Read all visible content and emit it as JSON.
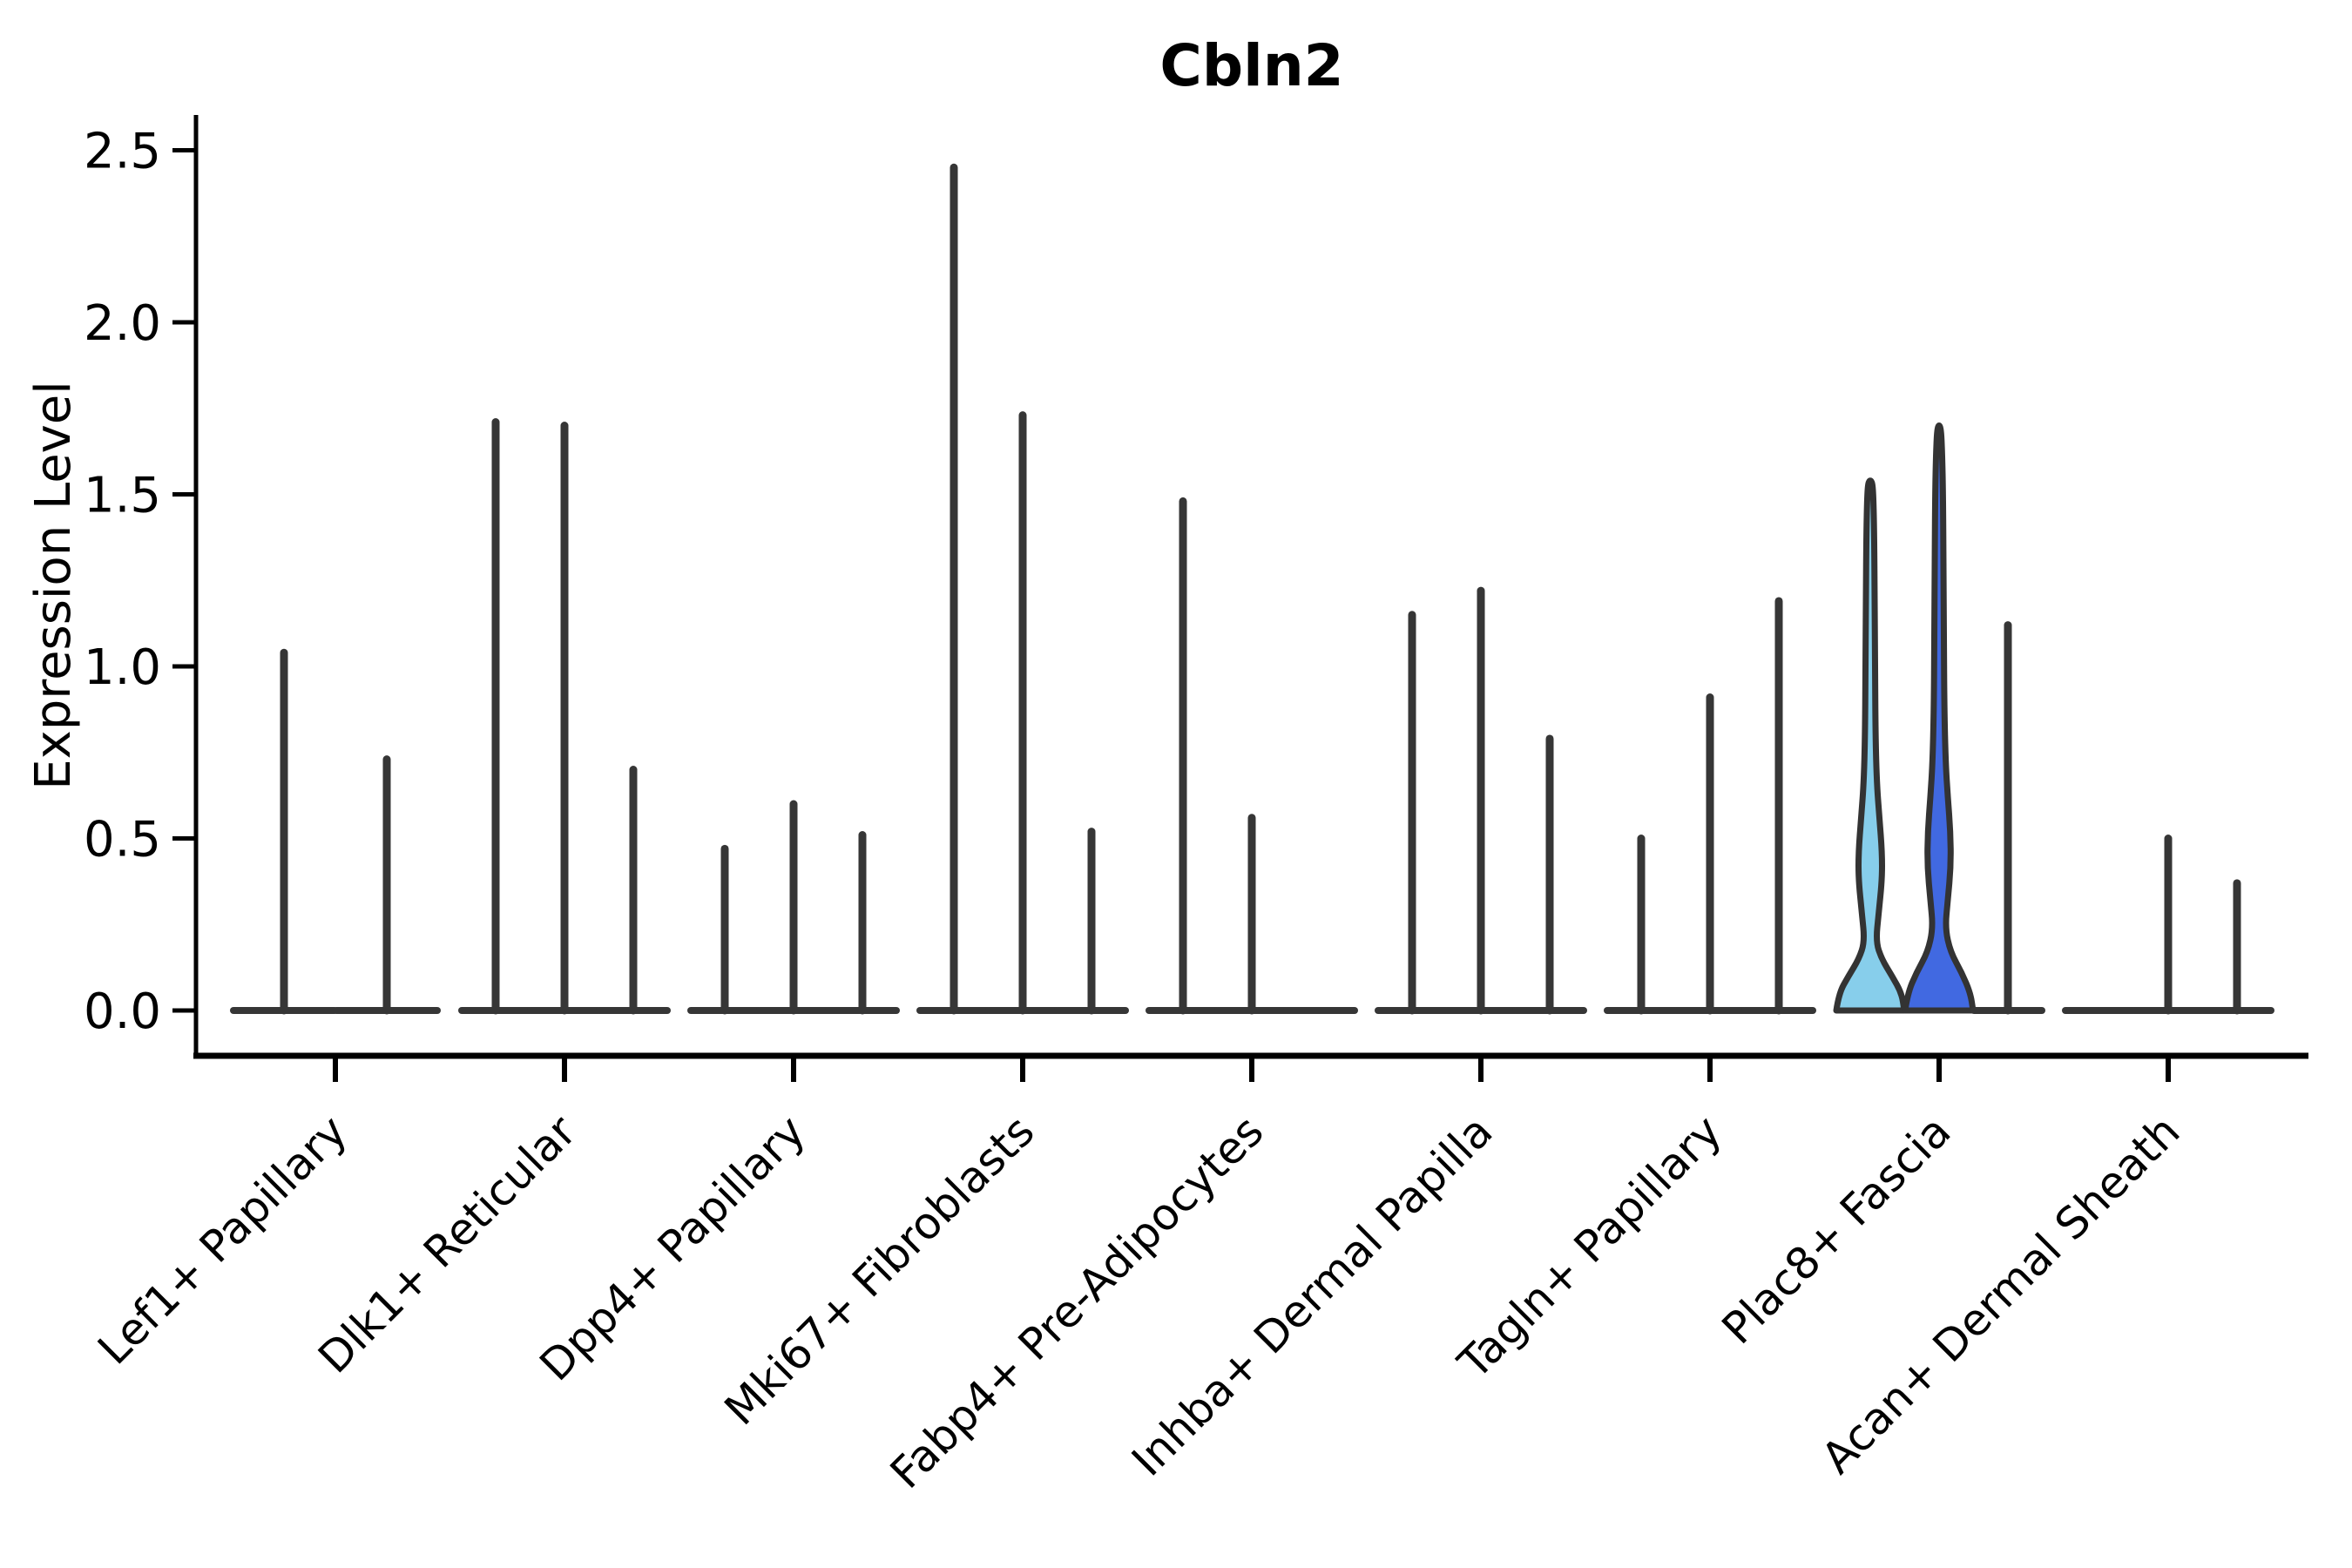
{
  "chart_data": {
    "type": "violin",
    "title": "Cbln2",
    "xlabel": "",
    "ylabel": "Expression Level",
    "ylim": [
      0,
      2.5
    ],
    "ytick_labels": [
      "0.0",
      "0.5",
      "1.0",
      "1.5",
      "2.0",
      "2.5"
    ],
    "ytick_values": [
      0,
      0.5,
      1.0,
      1.5,
      2.0,
      2.5
    ],
    "grid": false,
    "legend": "none",
    "colors": {
      "spike": "#363636",
      "outline": "#333333",
      "axis": "#000000",
      "text": "#000000",
      "fill_light_blue": "#87CEEB",
      "fill_royal_blue": "#4169E1"
    },
    "categories": [
      "Lef1+ Papillary",
      "Dlk1+ Reticular",
      "Dpp4+ Papillary",
      "Mki67+ Fibroblasts",
      "Fabp4+ Pre-Adipocytes",
      "Inhba+ Dermal Papilla",
      "Tagln+ Papillary",
      "Plac8+ Fascia",
      "Acan+ Dermal Sheath"
    ],
    "groups": [
      {
        "category": "Lef1+ Papillary",
        "violins": [
          {
            "offset": -59,
            "half_width": 58,
            "style": "spike",
            "max": 1.04
          },
          {
            "offset": 59,
            "half_width": 58,
            "style": "spike",
            "max": 0.73
          }
        ]
      },
      {
        "category": "Dlk1+ Reticular",
        "violins": [
          {
            "offset": -79,
            "half_width": 39,
            "style": "spike",
            "max": 1.71
          },
          {
            "offset": 0,
            "half_width": 39,
            "style": "spike",
            "max": 1.7
          },
          {
            "offset": 79,
            "half_width": 39,
            "style": "spike",
            "max": 0.7
          }
        ]
      },
      {
        "category": "Dpp4+ Papillary",
        "violins": [
          {
            "offset": -79,
            "half_width": 39,
            "style": "spike",
            "max": 0.47
          },
          {
            "offset": 0,
            "half_width": 39,
            "style": "spike",
            "max": 0.6
          },
          {
            "offset": 79,
            "half_width": 39,
            "style": "spike",
            "max": 0.51
          }
        ]
      },
      {
        "category": "Mki67+ Fibroblasts",
        "violins": [
          {
            "offset": -79,
            "half_width": 39,
            "style": "spike",
            "max": 2.45
          },
          {
            "offset": 0,
            "half_width": 39,
            "style": "spike",
            "max": 1.73
          },
          {
            "offset": 79,
            "half_width": 39,
            "style": "spike",
            "max": 0.52
          }
        ]
      },
      {
        "category": "Fabp4+ Pre-Adipocytes",
        "violins": [
          {
            "offset": -79,
            "half_width": 39,
            "style": "spike",
            "max": 1.48
          },
          {
            "offset": 0,
            "half_width": 39,
            "style": "spike",
            "max": 0.56
          },
          {
            "offset": 79,
            "half_width": 39,
            "style": "flat",
            "max": 0
          }
        ]
      },
      {
        "category": "Inhba+ Dermal Papilla",
        "violins": [
          {
            "offset": -79,
            "half_width": 39,
            "style": "spike",
            "max": 1.15
          },
          {
            "offset": 0,
            "half_width": 39,
            "style": "spike",
            "max": 1.22
          },
          {
            "offset": 79,
            "half_width": 39,
            "style": "spike",
            "max": 0.79
          }
        ]
      },
      {
        "category": "Tagln+ Papillary",
        "violins": [
          {
            "offset": -79,
            "half_width": 39,
            "style": "spike",
            "max": 0.5
          },
          {
            "offset": 0,
            "half_width": 39,
            "style": "spike",
            "max": 0.91
          },
          {
            "offset": 79,
            "half_width": 39,
            "style": "spike",
            "max": 1.19
          }
        ]
      },
      {
        "category": "Plac8+ Fascia",
        "violins": [
          {
            "offset": -79,
            "half_width": 39,
            "style": "filled",
            "fill": "#87CEEB",
            "max": 1.54,
            "profile": [
              [
                0,
                39
              ],
              [
                0.05,
                36
              ],
              [
                0.1,
                25
              ],
              [
                0.15,
                13
              ],
              [
                0.2,
                6.5
              ],
              [
                0.28,
                9.5
              ],
              [
                0.38,
                13.5
              ],
              [
                0.46,
                13.5
              ],
              [
                0.56,
                10.5
              ],
              [
                0.66,
                7.5
              ],
              [
                0.8,
                6
              ],
              [
                1.0,
                5.5
              ],
              [
                1.2,
                5
              ],
              [
                1.38,
                4.5
              ],
              [
                1.5,
                3.5
              ],
              [
                1.54,
                2
              ]
            ]
          },
          {
            "offset": 0,
            "half_width": 39,
            "style": "filled",
            "fill": "#4169E1",
            "max": 1.7,
            "profile": [
              [
                0,
                39
              ],
              [
                0.05,
                36
              ],
              [
                0.11,
                26
              ],
              [
                0.17,
                13
              ],
              [
                0.24,
                7
              ],
              [
                0.32,
                10
              ],
              [
                0.42,
                13.5
              ],
              [
                0.52,
                13
              ],
              [
                0.62,
                10
              ],
              [
                0.72,
                7.5
              ],
              [
                0.88,
                6
              ],
              [
                1.08,
                5.5
              ],
              [
                1.3,
                5
              ],
              [
                1.5,
                4.5
              ],
              [
                1.62,
                3.5
              ],
              [
                1.7,
                2
              ]
            ]
          },
          {
            "offset": 79,
            "half_width": 39,
            "style": "spike",
            "max": 1.12
          }
        ]
      },
      {
        "category": "Acan+ Dermal Sheath",
        "violins": [
          {
            "offset": -79,
            "half_width": 39,
            "style": "flat",
            "max": 0
          },
          {
            "offset": 0,
            "half_width": 39,
            "style": "spike",
            "max": 0.5
          },
          {
            "offset": 79,
            "half_width": 39,
            "style": "spike",
            "max": 0.37
          }
        ]
      }
    ]
  }
}
